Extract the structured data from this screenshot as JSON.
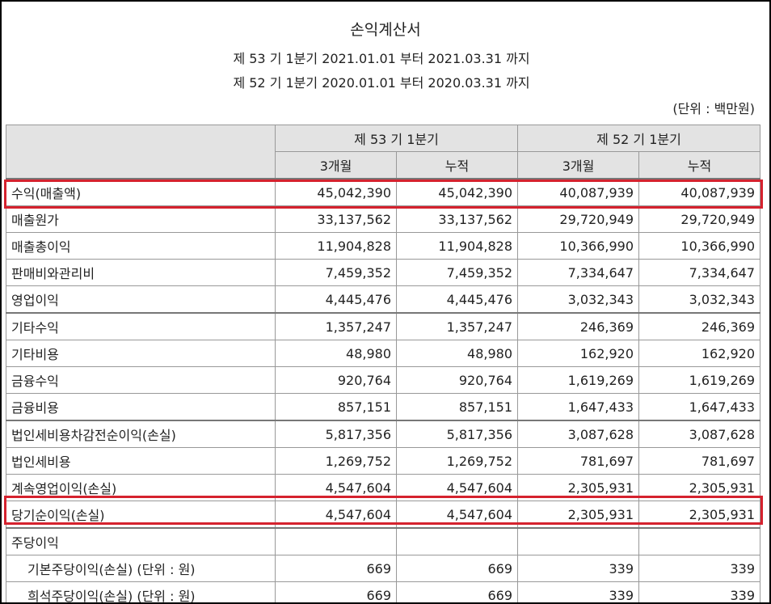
{
  "document": {
    "title": "손익계산서",
    "period_current": "제 53 기 1분기 2021.01.01 부터 2021.03.31 까지",
    "period_prior": "제 52 기 1분기 2020.01.01 부터 2020.03.31 까지",
    "unit": "(단위 : 백만원)"
  },
  "table": {
    "group_headers": [
      "제 53 기 1분기",
      "제 52 기 1분기"
    ],
    "sub_headers": [
      "3개월",
      "누적",
      "3개월",
      "누적"
    ],
    "rows": [
      {
        "label": "수익(매출액)",
        "values": [
          "45,042,390",
          "45,042,390",
          "40,087,939",
          "40,087,939"
        ]
      },
      {
        "label": "매출원가",
        "values": [
          "33,137,562",
          "33,137,562",
          "29,720,949",
          "29,720,949"
        ]
      },
      {
        "label": "매출총이익",
        "values": [
          "11,904,828",
          "11,904,828",
          "10,366,990",
          "10,366,990"
        ]
      },
      {
        "label": "판매비와관리비",
        "values": [
          "7,459,352",
          "7,459,352",
          "7,334,647",
          "7,334,647"
        ]
      },
      {
        "label": "영업이익",
        "values": [
          "4,445,476",
          "4,445,476",
          "3,032,343",
          "3,032,343"
        ]
      },
      {
        "label": "기타수익",
        "values": [
          "1,357,247",
          "1,357,247",
          "246,369",
          "246,369"
        ]
      },
      {
        "label": "기타비용",
        "values": [
          "48,980",
          "48,980",
          "162,920",
          "162,920"
        ]
      },
      {
        "label": "금융수익",
        "values": [
          "920,764",
          "920,764",
          "1,619,269",
          "1,619,269"
        ]
      },
      {
        "label": "금융비용",
        "values": [
          "857,151",
          "857,151",
          "1,647,433",
          "1,647,433"
        ]
      },
      {
        "label": "법인세비용차감전순이익(손실)",
        "values": [
          "5,817,356",
          "5,817,356",
          "3,087,628",
          "3,087,628"
        ]
      },
      {
        "label": "법인세비용",
        "values": [
          "1,269,752",
          "1,269,752",
          "781,697",
          "781,697"
        ]
      },
      {
        "label": "계속영업이익(손실)",
        "values": [
          "4,547,604",
          "4,547,604",
          "2,305,931",
          "2,305,931"
        ]
      },
      {
        "label": "당기순이익(손실)",
        "values": [
          "4,547,604",
          "4,547,604",
          "2,305,931",
          "2,305,931"
        ]
      },
      {
        "label": "주당이익",
        "values": [
          "",
          "",
          "",
          ""
        ]
      },
      {
        "label": "기본주당이익(손실) (단위 : 원)",
        "values": [
          "669",
          "669",
          "339",
          "339"
        ]
      },
      {
        "label": "희석주당이익(손실) (단위 : 원)",
        "values": [
          "669",
          "669",
          "339",
          "339"
        ]
      }
    ]
  },
  "highlight_color": "#d5222e"
}
